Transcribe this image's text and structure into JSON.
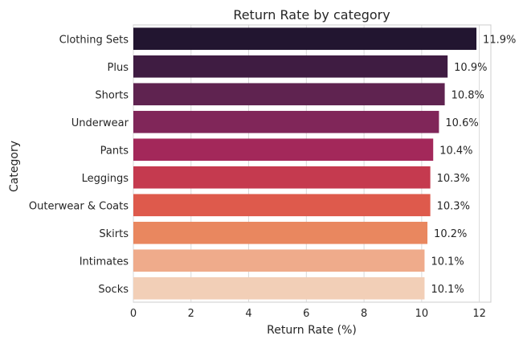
{
  "chart_data": {
    "type": "bar",
    "orientation": "horizontal",
    "title": "Return Rate by category",
    "xlabel": "Return Rate (%)",
    "ylabel": "Category",
    "categories": [
      "Clothing Sets",
      "Plus",
      "Shorts",
      "Underwear",
      "Pants",
      "Leggings",
      "Outerwear & Coats",
      "Skirts",
      "Intimates",
      "Socks"
    ],
    "values": [
      11.9,
      10.9,
      10.8,
      10.6,
      10.4,
      10.3,
      10.3,
      10.2,
      10.1,
      10.1
    ],
    "data_labels": [
      "11.9%",
      "10.9%",
      "10.8%",
      "10.6%",
      "10.4%",
      "10.3%",
      "10.3%",
      "10.2%",
      "10.1%",
      "10.1%"
    ],
    "xlim": [
      0,
      12.4
    ],
    "xticks": [
      0,
      2,
      4,
      6,
      8,
      10,
      12
    ],
    "grid": true,
    "legend": "none",
    "colors": [
      "#221530",
      "#3f1c42",
      "#5f2350",
      "#802659",
      "#a3285a",
      "#c53a4f",
      "#de5a4c",
      "#e9875f",
      "#efab8b",
      "#f2cfb7"
    ]
  }
}
